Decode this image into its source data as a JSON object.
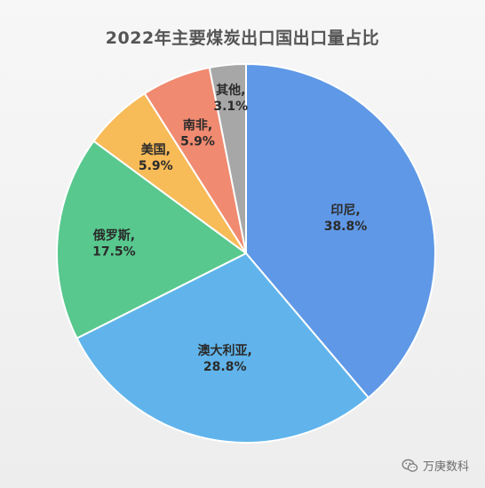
{
  "title": "2022年主要煤炭出口国出口量占比",
  "chart_data": {
    "type": "pie",
    "title": "2022年主要煤炭出口国出口量占比",
    "slices": [
      {
        "name": "印尼",
        "value": 38.8,
        "label_line1": "印尼,",
        "label_line2": "38.8%",
        "color": "#5f98e6"
      },
      {
        "name": "澳大利亚",
        "value": 28.8,
        "label_line1": "澳大利亚,",
        "label_line2": "28.8%",
        "color": "#60b4eb"
      },
      {
        "name": "俄罗斯",
        "value": 17.5,
        "label_line1": "俄罗斯,",
        "label_line2": "17.5%",
        "color": "#58c88e"
      },
      {
        "name": "美国",
        "value": 5.9,
        "label_line1": "美国,",
        "label_line2": "5.9%",
        "color": "#f7bb58"
      },
      {
        "name": "南非",
        "value": 5.9,
        "label_line1": "南非,",
        "label_line2": "5.9%",
        "color": "#f08a70"
      },
      {
        "name": "其他",
        "value": 3.1,
        "label_line1": "其他,",
        "label_line2": "3.1%",
        "color": "#a7a7a7"
      }
    ],
    "start": "12 o'clock",
    "direction": "clockwise",
    "legend": "none"
  },
  "watermark": {
    "text": "万庚数科",
    "icon": "wechat-icon"
  }
}
